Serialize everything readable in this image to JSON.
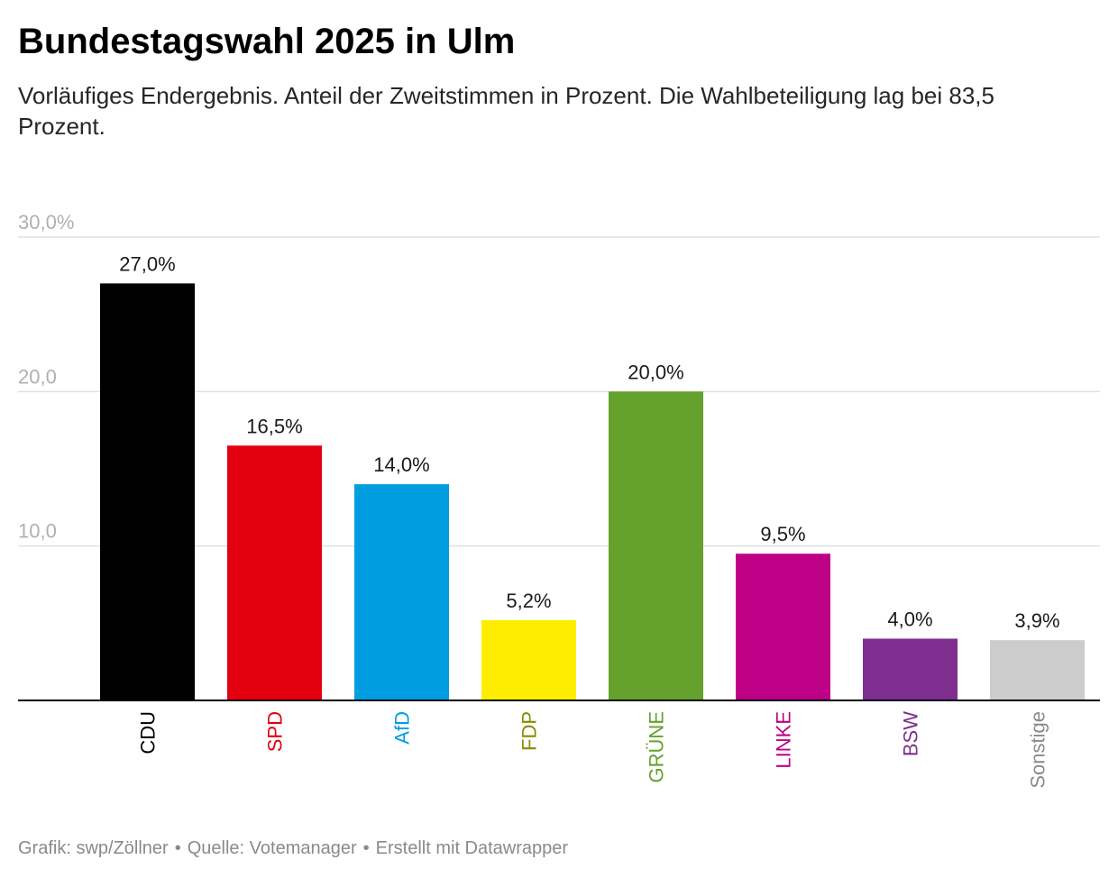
{
  "header": {
    "title": "Bundestagswahl 2025 in Ulm",
    "subtitle": "Vorläufiges Endergebnis. Anteil der Zweitstimmen in Prozent. Die Wahlbeteiligung lag bei 83,5 Prozent."
  },
  "chart_data": {
    "type": "bar",
    "title": "Bundestagswahl 2025 in Ulm",
    "xlabel": "",
    "ylabel": "",
    "ylim": [
      0,
      30
    ],
    "y_ticks": [
      {
        "value": 10,
        "label": "10,0"
      },
      {
        "value": 20,
        "label": "20,0"
      },
      {
        "value": 30,
        "label": "30,0%"
      }
    ],
    "grid": true,
    "categories": [
      "CDU",
      "SPD",
      "AfD",
      "FDP",
      "GRÜNE",
      "LINKE",
      "BSW",
      "Sonstige"
    ],
    "values": [
      27.0,
      16.5,
      14.0,
      5.2,
      20.0,
      9.5,
      4.0,
      3.9
    ],
    "value_labels": [
      "27,0%",
      "16,5%",
      "14,0%",
      "5,2%",
      "20,0%",
      "9,5%",
      "4,0%",
      "3,9%"
    ],
    "bar_colors": [
      "#000000",
      "#e3000f",
      "#009ee0",
      "#ffed00",
      "#64a12d",
      "#be0086",
      "#7d2e8f",
      "#cccccc"
    ],
    "label_colors": [
      "#000000",
      "#e3000f",
      "#009ee0",
      "#8a8a00",
      "#64a12d",
      "#be0086",
      "#7d2e8f",
      "#8a8a8a"
    ]
  },
  "footer": {
    "credit": "Grafik: swp/Zöllner",
    "source": "Quelle: Votemanager",
    "tool": "Erstellt mit Datawrapper",
    "separator": "•"
  },
  "colors": {
    "grid": "#e0e0e0",
    "axis": "#000000",
    "tick_label": "#b0b0b0",
    "value_label": "#1a1a1a"
  }
}
